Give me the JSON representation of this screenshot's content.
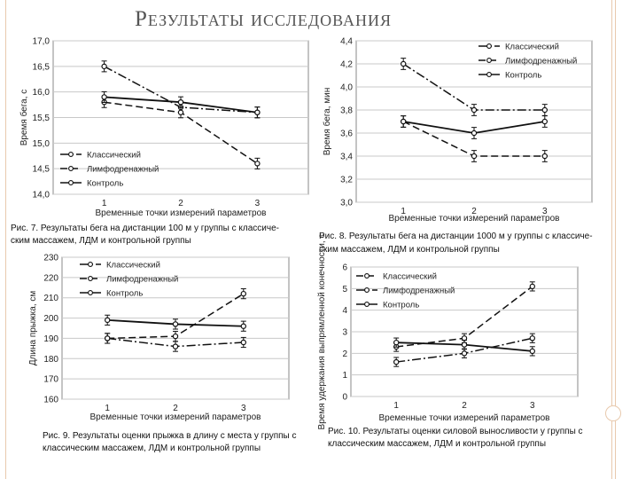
{
  "slide": {
    "title": "Результаты исследования"
  },
  "chart_data": [
    {
      "type": "line",
      "ylabel": "Время бега, с",
      "xlabel": "Временные точки измерений параметров",
      "categories": [
        "1",
        "2",
        "3"
      ],
      "ylim": [
        14.0,
        17.0
      ],
      "yticks": [
        "14,0",
        "14,5",
        "15,0",
        "15,5",
        "16,0",
        "16,5",
        "17,0"
      ],
      "legend_position": "bottom-left",
      "series": [
        {
          "name": "Классический",
          "style": "dashdot",
          "values": [
            16.5,
            15.7,
            15.6
          ]
        },
        {
          "name": "Лимфодренажный",
          "style": "dashed",
          "values": [
            15.8,
            15.6,
            14.6
          ]
        },
        {
          "name": "Контроль",
          "style": "solid",
          "values": [
            15.9,
            15.8,
            15.6
          ]
        }
      ],
      "caption": [
        "Рис. 7. Результаты бега на дистанции 100 м у группы с классиче-",
        "ским массажем, ЛДМ и контрольной группы"
      ]
    },
    {
      "type": "line",
      "ylabel": "Время бега, мин",
      "xlabel": "Временные точки измерений параметров",
      "categories": [
        "1",
        "2",
        "3"
      ],
      "ylim": [
        3.0,
        4.4
      ],
      "yticks": [
        "3,0",
        "3,2",
        "3,4",
        "3,6",
        "3,8",
        "4,0",
        "4,2",
        "4,4"
      ],
      "legend_position": "top-right",
      "series": [
        {
          "name": "Классический",
          "style": "dashdot",
          "values": [
            4.2,
            3.8,
            3.8
          ]
        },
        {
          "name": "Лимфодренажный",
          "style": "dashed",
          "values": [
            3.7,
            3.4,
            3.4
          ]
        },
        {
          "name": "Контроль",
          "style": "solid",
          "values": [
            3.7,
            3.6,
            3.7
          ]
        }
      ],
      "caption": [
        "Рис. 8. Результаты бега на дистанции 1000 м у группы с классиче-",
        "ским массажем, ЛДМ и контрольной группы"
      ]
    },
    {
      "type": "line",
      "ylabel": "Длина прыжка, см",
      "xlabel": "Временные точки измерений параметров",
      "categories": [
        "1",
        "2",
        "3"
      ],
      "ylim": [
        160,
        230
      ],
      "yticks": [
        "160",
        "170",
        "180",
        "190",
        "200",
        "210",
        "220",
        "230"
      ],
      "legend_position": "top-left",
      "series": [
        {
          "name": "Классический",
          "style": "dashdot",
          "values": [
            190,
            186,
            188
          ]
        },
        {
          "name": "Лимфодренажный",
          "style": "dashed",
          "values": [
            190,
            191,
            212
          ]
        },
        {
          "name": "Контроль",
          "style": "solid",
          "values": [
            199,
            197,
            196
          ]
        }
      ],
      "caption": [
        "Рис. 9. Результаты оценки прыжка в длину с места у группы с",
        "классическим массажем, ЛДМ и контрольной группы"
      ]
    },
    {
      "type": "line",
      "ylabel": "Время удержания выпрямленной конечности, с",
      "xlabel": "Временные точки измерений параметров",
      "categories": [
        "1",
        "2",
        "3"
      ],
      "ylim": [
        0,
        6
      ],
      "yticks": [
        "0",
        "1",
        "2",
        "3",
        "4",
        "5",
        "6"
      ],
      "legend_position": "top-left",
      "series": [
        {
          "name": "Классический",
          "style": "dashed",
          "values": [
            2.3,
            2.7,
            5.1
          ]
        },
        {
          "name": "Лимфодренажный",
          "style": "dashdot",
          "values": [
            1.6,
            2.0,
            2.7
          ]
        },
        {
          "name": "Контроль",
          "style": "solid",
          "values": [
            2.5,
            2.4,
            2.1
          ]
        }
      ],
      "caption": [
        "Рис. 10. Результаты оценки силовой выносливости у группы с",
        "классическим массажем, ЛДМ и контрольной группы"
      ]
    }
  ]
}
